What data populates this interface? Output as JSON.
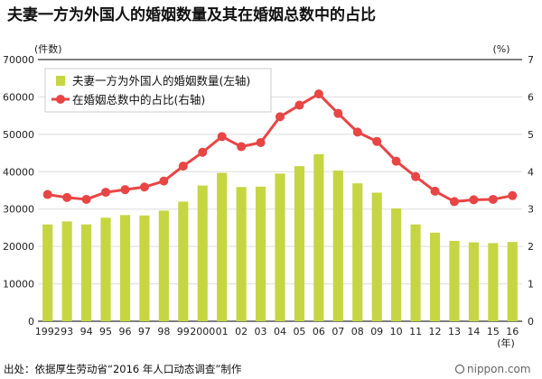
{
  "title": "夫妻一方为外国人的婚姻数量及其在婚姻总数中的占比",
  "left_unit": "(件数)",
  "right_unit": "(%)",
  "year_unit": "(年)",
  "source": "出处：依据厚生劳动省“2016 年人口动态调查”制作",
  "brand": "nippon.com",
  "chart_data": {
    "type": "bar+line",
    "categories": [
      "1992",
      "93",
      "94",
      "95",
      "96",
      "97",
      "98",
      "99",
      "2000",
      "01",
      "02",
      "03",
      "04",
      "05",
      "06",
      "07",
      "08",
      "09",
      "10",
      "11",
      "12",
      "13",
      "14",
      "15",
      "16"
    ],
    "series": [
      {
        "name": "夫妻一方为外国人的婚姻数量(左轴)",
        "type": "bar",
        "axis": "left",
        "color": "#c5d642",
        "values": [
          25900,
          26700,
          25900,
          27700,
          28400,
          28300,
          29600,
          32000,
          36300,
          39700,
          35900,
          36000,
          39500,
          41500,
          44700,
          40300,
          36900,
          34400,
          30200,
          25900,
          23700,
          21500,
          21100,
          20900,
          21200
        ]
      },
      {
        "name": "在婚姻总数中的占比(右轴)",
        "type": "line",
        "axis": "right",
        "color": "#e84545",
        "values": [
          3.39,
          3.31,
          3.26,
          3.45,
          3.52,
          3.59,
          3.75,
          4.15,
          4.52,
          4.94,
          4.67,
          4.78,
          5.47,
          5.78,
          6.08,
          5.56,
          5.06,
          4.81,
          4.28,
          3.87,
          3.48,
          3.2,
          3.25,
          3.26,
          3.36
        ]
      }
    ],
    "left_axis": {
      "min": 0,
      "max": 70000,
      "ticks": [
        "0",
        "10000",
        "20000",
        "30000",
        "40000",
        "50000",
        "60000",
        "70000"
      ]
    },
    "right_axis": {
      "min": 0,
      "max": 7,
      "ticks": [
        "0",
        "1",
        "2",
        "3",
        "4",
        "5",
        "6",
        "7"
      ]
    },
    "legend_position": "top-left"
  }
}
